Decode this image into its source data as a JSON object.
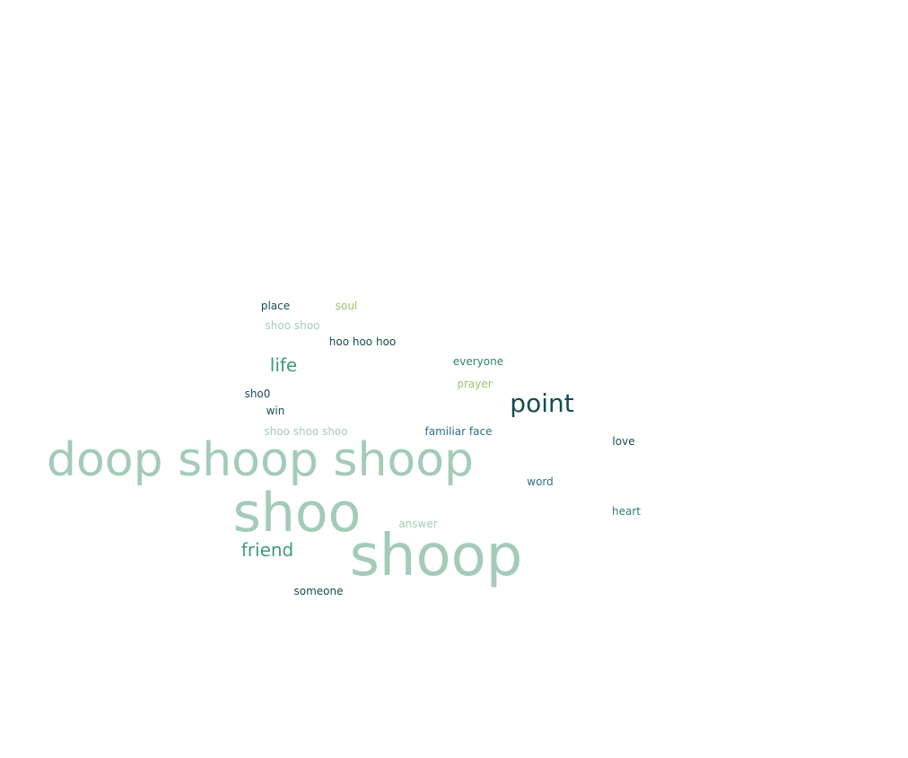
{
  "palette": {
    "sage": "#a3cbb7",
    "teal": "#3d9b7e",
    "dark_teal": "#174b53",
    "lime": "#9ac46e",
    "pine": "#2f7f73"
  },
  "words": [
    {
      "id": "doop-shoop-shoop",
      "text": "doop shoop shoop",
      "color": "#a3cbb7"
    },
    {
      "id": "shoo",
      "text": "shoo",
      "color": "#a3cbb7"
    },
    {
      "id": "shoop",
      "text": "shoop",
      "color": "#a3cbb7"
    },
    {
      "id": "point",
      "text": "point",
      "color": "#174b53"
    },
    {
      "id": "friend",
      "text": "friend",
      "color": "#3d9b7e"
    },
    {
      "id": "life",
      "text": "life",
      "color": "#3d9b7e"
    },
    {
      "id": "place",
      "text": "place",
      "color": "#174b53"
    },
    {
      "id": "soul",
      "text": "soul",
      "color": "#9ac46e"
    },
    {
      "id": "shoo-shoo",
      "text": "shoo shoo",
      "color": "#a3cbb7"
    },
    {
      "id": "hoo-hoo-hoo",
      "text": "hoo hoo hoo",
      "color": "#174b53"
    },
    {
      "id": "everyone",
      "text": "everyone",
      "color": "#2f7f73"
    },
    {
      "id": "prayer",
      "text": "prayer",
      "color": "#9ac46e"
    },
    {
      "id": "sho0",
      "text": "sho0",
      "color": "#174b53"
    },
    {
      "id": "win",
      "text": "win",
      "color": "#174b53"
    },
    {
      "id": "shoo-shoo-shoo",
      "text": "shoo shoo shoo",
      "color": "#a3cbb7"
    },
    {
      "id": "familiar-face",
      "text": "familiar face",
      "color": "#2f6f80"
    },
    {
      "id": "love",
      "text": "love",
      "color": "#174b53"
    },
    {
      "id": "word",
      "text": "word",
      "color": "#2f6f80"
    },
    {
      "id": "heart",
      "text": "heart",
      "color": "#2f7f73"
    },
    {
      "id": "answer",
      "text": "answer",
      "color": "#a3cbb7"
    },
    {
      "id": "someone",
      "text": "someone",
      "color": "#174b53"
    }
  ]
}
